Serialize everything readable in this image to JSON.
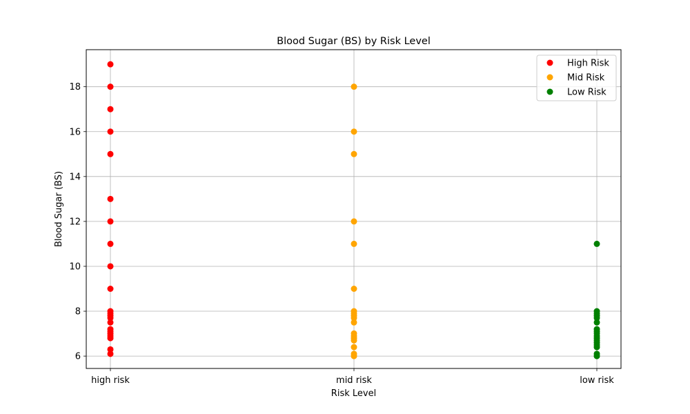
{
  "chart_data": {
    "type": "scatter",
    "title": "Blood Sugar (BS) by Risk Level",
    "xlabel": "Risk Level",
    "ylabel": "Blood Sugar (BS)",
    "categories": [
      "high risk",
      "mid risk",
      "low risk"
    ],
    "ylim": [
      5.45,
      19.65
    ],
    "yticks": [
      6,
      8,
      10,
      12,
      14,
      16,
      18
    ],
    "grid": true,
    "legend_position": "top-right",
    "series": [
      {
        "name": "High Risk",
        "color": "#ff0000",
        "category": "high risk",
        "values": [
          19,
          18,
          17,
          16,
          15,
          13,
          12,
          11,
          10,
          9,
          8,
          7.9,
          7.8,
          7.7,
          7.5,
          7.2,
          7.1,
          7,
          6.9,
          6.8,
          6.3,
          6.1
        ]
      },
      {
        "name": "Mid Risk",
        "color": "#ffa500",
        "category": "mid risk",
        "values": [
          18,
          16,
          15,
          12,
          11,
          9,
          8,
          7.9,
          7.8,
          7.7,
          7.5,
          7.01,
          6.9,
          6.8,
          6.7,
          6.4,
          6.1,
          6
        ]
      },
      {
        "name": "Low Risk",
        "color": "#008000",
        "category": "low risk",
        "values": [
          11,
          8,
          7.9,
          7.8,
          7.7,
          7.5,
          7.2,
          7.1,
          7.01,
          6.9,
          6.8,
          6.7,
          6.6,
          6.5,
          6.4,
          6.1,
          6
        ]
      }
    ]
  }
}
